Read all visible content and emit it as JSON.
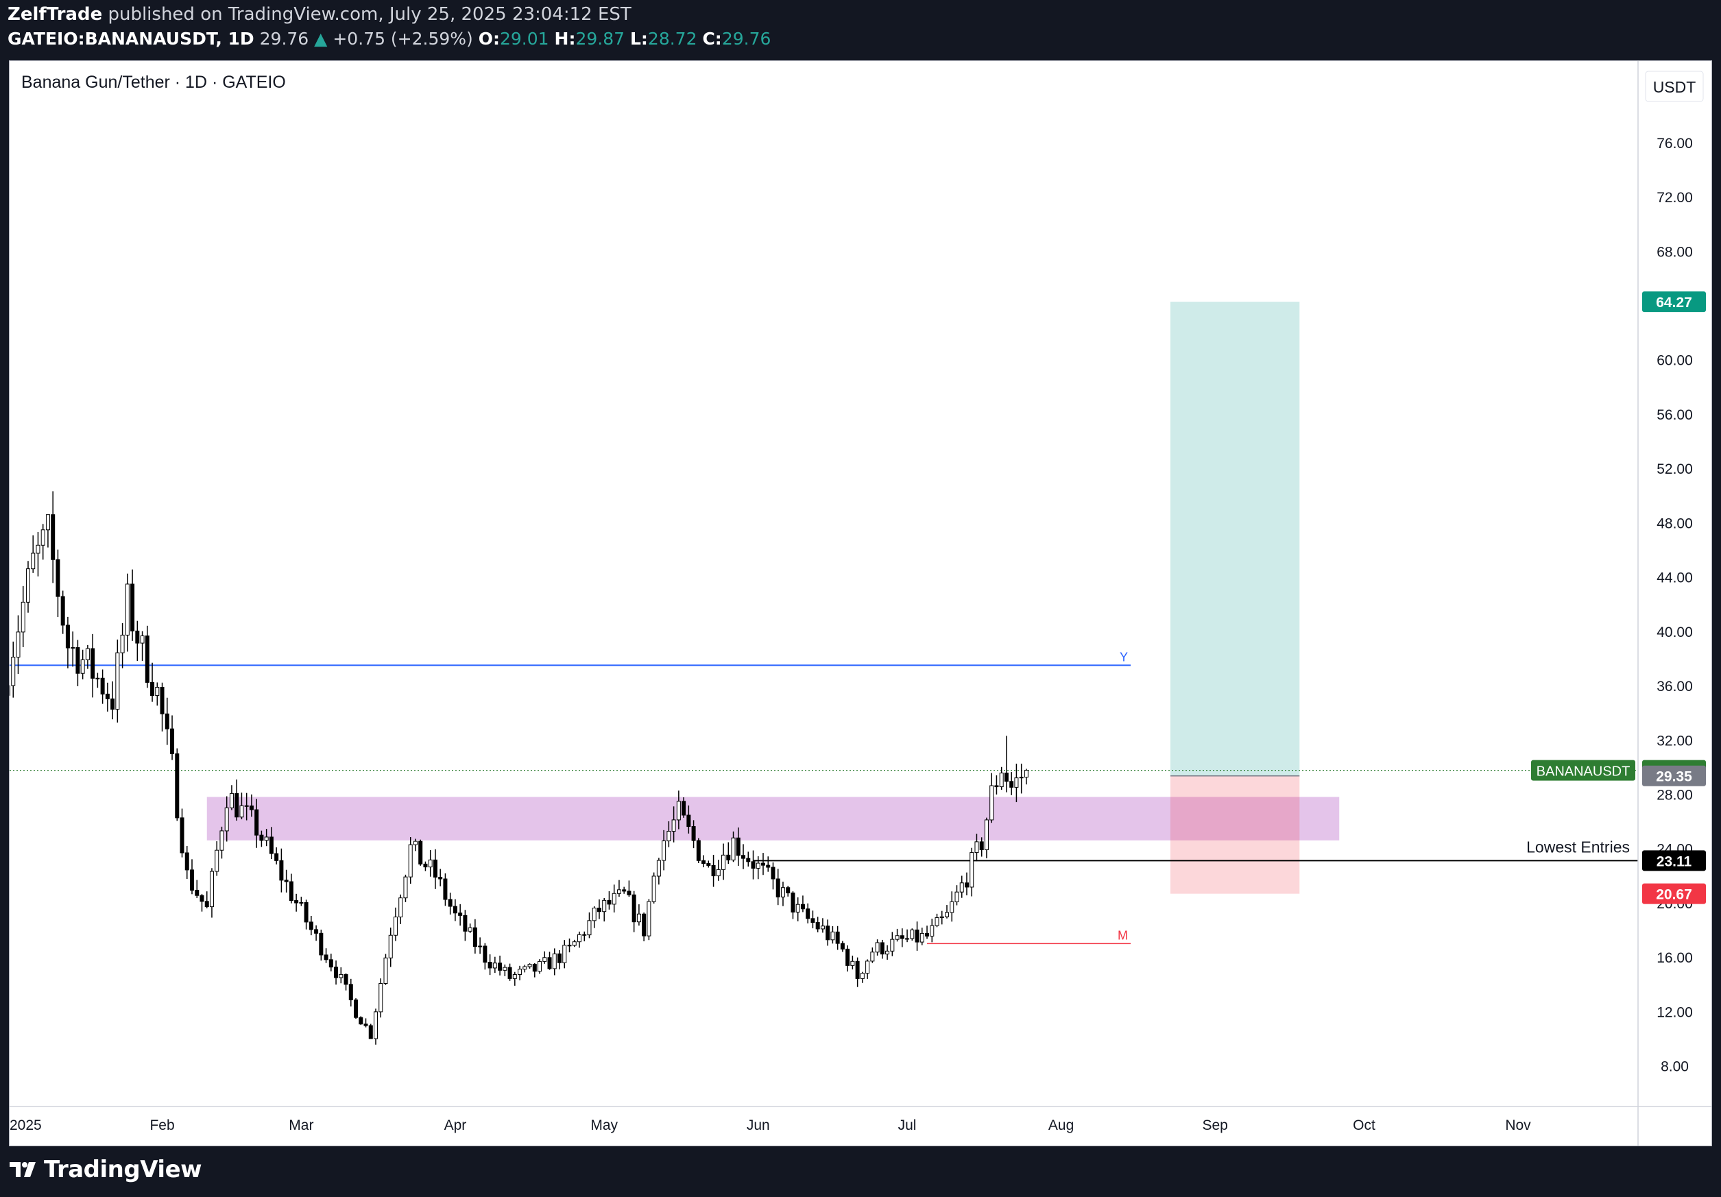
{
  "header": {
    "author": "ZelfTrade",
    "published": "published on TradingView.com, July 25, 2025 23:04:12 EST",
    "symbol": "GATEIO:BANANAUSDT, 1D",
    "last": "29.76",
    "change_arrow": "▲",
    "change": "+0.75 (+2.59%)",
    "o_label": "O:",
    "o_value": "29.01",
    "h_label": "H:",
    "h_value": "29.87",
    "l_label": "L:",
    "l_value": "28.72",
    "c_label": "C:",
    "c_value": "29.76"
  },
  "footer": {
    "brand": "TradingView",
    "logo_icon": "tradingview-logo-icon"
  },
  "colors": {
    "up_candle": "#ffffff",
    "down_candle": "#000000",
    "target_zone": "#26a69a",
    "stop_zone": "#f23645",
    "demand_zone": "#ce93d8",
    "level_y": "#2962ff",
    "level_m": "#f23645",
    "last_price": "#2e7d32"
  },
  "chart_data": {
    "type": "candlestick",
    "title": "Banana Gun/Tether · 1D · GATEIO",
    "currency": "USDT",
    "ylim": [
      5,
      82
    ],
    "y_ticks": [
      "8.00",
      "12.00",
      "16.00",
      "20.00",
      "24.00",
      "28.00",
      "32.00",
      "36.00",
      "40.00",
      "44.00",
      "48.00",
      "52.00",
      "56.00",
      "60.00",
      "64.00",
      "68.00",
      "72.00",
      "76.00"
    ],
    "x_range": [
      "2025-01-01",
      "2025-11-30"
    ],
    "x_ticks": [
      {
        "date": "2025-01-01",
        "label": "2025"
      },
      {
        "date": "2025-02-01",
        "label": "Feb"
      },
      {
        "date": "2025-03-01",
        "label": "Mar"
      },
      {
        "date": "2025-04-01",
        "label": "Apr"
      },
      {
        "date": "2025-05-01",
        "label": "May"
      },
      {
        "date": "2025-06-01",
        "label": "Jun"
      },
      {
        "date": "2025-07-01",
        "label": "Jul"
      },
      {
        "date": "2025-08-01",
        "label": "Aug"
      },
      {
        "date": "2025-09-01",
        "label": "Sep"
      },
      {
        "date": "2025-10-01",
        "label": "Oct"
      },
      {
        "date": "2025-11-01",
        "label": "Nov"
      }
    ],
    "anchors": [
      {
        "date": "2025-01-01",
        "close": 37.5
      },
      {
        "date": "2025-01-06",
        "close": 45
      },
      {
        "date": "2025-01-09",
        "close": 47
      },
      {
        "date": "2025-01-13",
        "close": 39
      },
      {
        "date": "2025-01-17",
        "close": 37.5
      },
      {
        "date": "2025-01-22",
        "close": 35
      },
      {
        "date": "2025-01-25",
        "close": 42
      },
      {
        "date": "2025-01-28",
        "close": 38.5
      },
      {
        "date": "2025-01-31",
        "close": 35.5
      },
      {
        "date": "2025-02-03",
        "close": 30
      },
      {
        "date": "2025-02-06",
        "close": 22
      },
      {
        "date": "2025-02-10",
        "close": 19.5
      },
      {
        "date": "2025-02-14",
        "close": 28
      },
      {
        "date": "2025-02-20",
        "close": 25.5
      },
      {
        "date": "2025-02-25",
        "close": 22
      },
      {
        "date": "2025-03-03",
        "close": 18
      },
      {
        "date": "2025-03-08",
        "close": 15
      },
      {
        "date": "2025-03-12",
        "close": 12
      },
      {
        "date": "2025-03-15",
        "close": 10.3
      },
      {
        "date": "2025-03-19",
        "close": 18
      },
      {
        "date": "2025-03-23",
        "close": 24
      },
      {
        "date": "2025-03-28",
        "close": 22
      },
      {
        "date": "2025-04-01",
        "close": 19
      },
      {
        "date": "2025-04-07",
        "close": 16
      },
      {
        "date": "2025-04-12",
        "close": 14.5
      },
      {
        "date": "2025-04-18",
        "close": 15.2
      },
      {
        "date": "2025-04-24",
        "close": 16.5
      },
      {
        "date": "2025-04-30",
        "close": 19.5
      },
      {
        "date": "2025-05-05",
        "close": 20.5
      },
      {
        "date": "2025-05-09",
        "close": 18
      },
      {
        "date": "2025-05-12",
        "close": 24
      },
      {
        "date": "2025-05-16",
        "close": 26.5
      },
      {
        "date": "2025-05-22",
        "close": 22.5
      },
      {
        "date": "2025-05-27",
        "close": 24.5
      },
      {
        "date": "2025-05-31",
        "close": 23
      },
      {
        "date": "2025-06-05",
        "close": 21
      },
      {
        "date": "2025-06-10",
        "close": 19
      },
      {
        "date": "2025-06-14",
        "close": 18
      },
      {
        "date": "2025-06-18",
        "close": 16.5
      },
      {
        "date": "2025-06-21",
        "close": 14.6
      },
      {
        "date": "2025-06-24",
        "close": 16.5
      },
      {
        "date": "2025-06-30",
        "close": 17.2
      },
      {
        "date": "2025-07-05",
        "close": 17.5
      },
      {
        "date": "2025-07-09",
        "close": 19
      },
      {
        "date": "2025-07-13",
        "close": 22
      },
      {
        "date": "2025-07-16",
        "close": 24.5
      },
      {
        "date": "2025-07-18",
        "close": 28
      },
      {
        "date": "2025-07-20",
        "close": 30
      },
      {
        "date": "2025-07-22",
        "close": 28.5
      },
      {
        "date": "2025-07-25",
        "close": 29.76
      }
    ],
    "extremes": [
      {
        "date": "2025-01-09",
        "high": 47.5
      },
      {
        "date": "2025-03-15",
        "low": 10.0
      },
      {
        "date": "2025-06-21",
        "low": 13.8
      },
      {
        "date": "2025-07-21",
        "high": 32.3
      }
    ],
    "annotations": {
      "level_y": {
        "value": 37.5,
        "label": "Y",
        "from": "2025-01-01",
        "to": "2025-08-15"
      },
      "level_m": {
        "value": 17.0,
        "label": "M",
        "from": "2025-07-05",
        "to": "2025-08-15"
      },
      "demand_zone": {
        "from": "2025-02-10",
        "to": "2025-09-26",
        "top": 27.8,
        "bottom": 24.6
      },
      "lowest_entries": {
        "value": 23.11,
        "label": "Lowest Entries",
        "from": "2025-05-31"
      },
      "position": {
        "from": "2025-08-23",
        "to": "2025-09-18",
        "entry": 29.35,
        "target": 64.27,
        "stop": 20.67
      }
    },
    "price_labels": [
      {
        "value": 64.27,
        "text": "64.27",
        "bg": "#089981",
        "fg": "#ffffff"
      },
      {
        "value": 29.76,
        "text": "29.76",
        "bg": "#2e7d32",
        "fg": "#ffffff",
        "tag": "BANANAUSDT"
      },
      {
        "value": 29.35,
        "text": "29.35",
        "bg": "#787b86",
        "fg": "#ffffff"
      },
      {
        "value": 23.11,
        "text": "23.11",
        "bg": "#000000",
        "fg": "#ffffff"
      },
      {
        "value": 20.67,
        "text": "20.67",
        "bg": "#f23645",
        "fg": "#ffffff"
      }
    ],
    "last_price": 29.76
  }
}
